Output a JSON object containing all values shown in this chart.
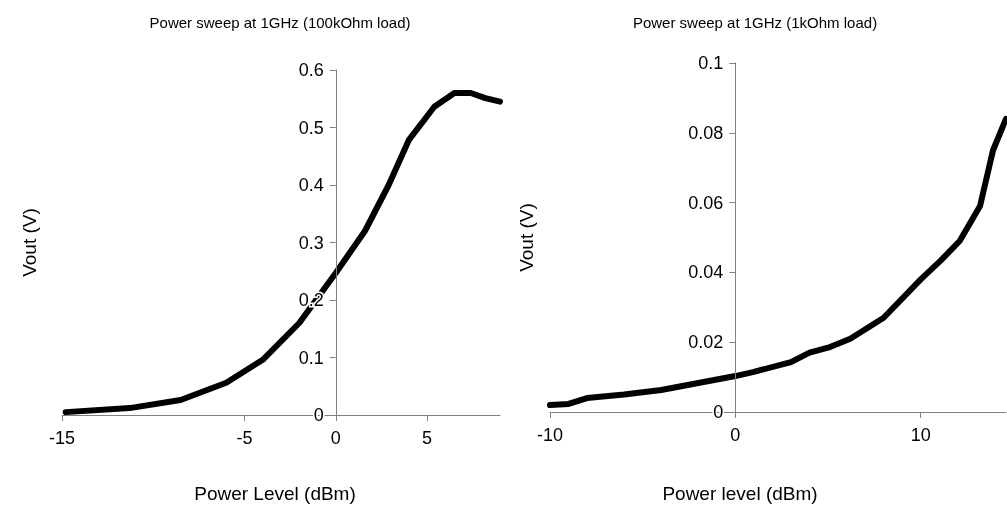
{
  "chart_data": [
    {
      "type": "line",
      "title": "Power sweep at 1GHz (100kOhm load)",
      "xlabel": "Power Level (dBm)",
      "ylabel": "Vout (V)",
      "xlim": [
        -15,
        9
      ],
      "ylim": [
        0,
        0.6
      ],
      "xticks": [
        -15,
        -5,
        0,
        5
      ],
      "yticks": [
        0,
        0.1,
        0.2,
        0.3,
        0.4,
        0.5,
        0.6
      ],
      "grid": false,
      "line_style": "solid",
      "x": [
        -14.8,
        -11.3,
        -8.5,
        -6,
        -4,
        -2,
        0,
        1.6,
        2.9,
        4,
        5.4,
        6.5,
        7.4,
        8.2,
        9
      ],
      "series": [
        {
          "color": "#000000",
          "values": [
            0.005,
            0.012,
            0.026,
            0.056,
            0.096,
            0.16,
            0.247,
            0.32,
            0.4,
            0.478,
            0.536,
            0.56,
            0.56,
            0.551,
            0.545
          ]
        }
      ]
    },
    {
      "type": "line",
      "title": "Power sweep at 1GHz (1kOhm load)",
      "xlabel": "Power level (dBm)",
      "ylabel": "Vout (V)",
      "xlim": [
        -10,
        14.6
      ],
      "ylim": [
        0,
        0.1
      ],
      "xticks": [
        -10,
        0,
        10
      ],
      "yticks": [
        0,
        0.02,
        0.04,
        0.06,
        0.08,
        0.1
      ],
      "grid": false,
      "line_style": "solid",
      "x": [
        -10,
        -9,
        -8,
        -6,
        -4,
        -2,
        0,
        1,
        3,
        4,
        5.1,
        6.2,
        8,
        10,
        11.1,
        12.1,
        13.2,
        13.9,
        14.6
      ],
      "series": [
        {
          "color": "#000000",
          "values": [
            0.002,
            0.0023,
            0.004,
            0.005,
            0.0063,
            0.0083,
            0.0103,
            0.0115,
            0.0143,
            0.017,
            0.0186,
            0.021,
            0.027,
            0.038,
            0.0435,
            0.049,
            0.059,
            0.075,
            0.084
          ]
        }
      ]
    }
  ]
}
